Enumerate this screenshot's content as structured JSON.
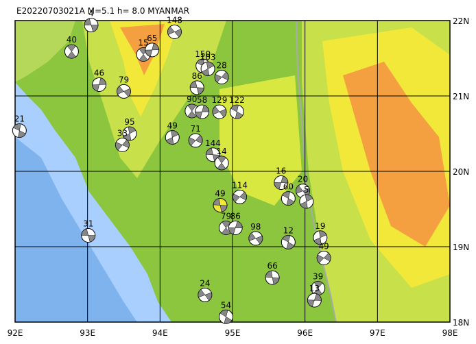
{
  "chart_data": {
    "type": "focal-map",
    "title": "E20220703021A M=5.1 h= 8.0 MYANMAR",
    "xlim": [
      92,
      98
    ],
    "ylim": [
      18,
      22
    ],
    "xticks": [
      {
        "value": 92,
        "label": "92E"
      },
      {
        "value": 93,
        "label": "93E"
      },
      {
        "value": 94,
        "label": "94E"
      },
      {
        "value": 95,
        "label": "95E"
      },
      {
        "value": 96,
        "label": "96E"
      },
      {
        "value": 97,
        "label": "97E"
      },
      {
        "value": 98,
        "label": "98E"
      }
    ],
    "yticks": [
      {
        "value": 18,
        "label": "18N"
      },
      {
        "value": 19,
        "label": "19N"
      },
      {
        "value": 20,
        "label": "20N"
      },
      {
        "value": 21,
        "label": "21N"
      },
      {
        "value": 22,
        "label": "22N"
      }
    ],
    "grid": true,
    "events": [
      {
        "label": "4",
        "lon": 93.05,
        "lat": 21.94
      },
      {
        "label": "40",
        "lon": 92.78,
        "lat": 21.59
      },
      {
        "label": "46",
        "lon": 93.16,
        "lat": 21.15
      },
      {
        "label": "79",
        "lon": 93.5,
        "lat": 21.06
      },
      {
        "label": "21",
        "lon": 92.06,
        "lat": 20.54
      },
      {
        "label": "95",
        "lon": 93.58,
        "lat": 20.5
      },
      {
        "label": "33",
        "lon": 93.48,
        "lat": 20.35
      },
      {
        "label": "31",
        "lon": 93.01,
        "lat": 19.15
      },
      {
        "label": "15",
        "lon": 93.77,
        "lat": 21.55
      },
      {
        "label": "65",
        "lon": 93.89,
        "lat": 21.61
      },
      {
        "label": "148",
        "lon": 94.2,
        "lat": 21.85
      },
      {
        "label": "150",
        "lon": 94.59,
        "lat": 21.4
      },
      {
        "label": "103",
        "lon": 94.66,
        "lat": 21.36
      },
      {
        "label": "28",
        "lon": 94.85,
        "lat": 21.25
      },
      {
        "label": "86",
        "lon": 94.51,
        "lat": 21.11
      },
      {
        "label": "90",
        "lon": 94.44,
        "lat": 20.8
      },
      {
        "label": "58",
        "lon": 94.58,
        "lat": 20.79
      },
      {
        "label": "129",
        "lon": 94.82,
        "lat": 20.79
      },
      {
        "label": "122",
        "lon": 95.06,
        "lat": 20.79
      },
      {
        "label": "49",
        "lon": 94.17,
        "lat": 20.45
      },
      {
        "label": "71",
        "lon": 94.49,
        "lat": 20.41
      },
      {
        "label": "144",
        "lon": 94.73,
        "lat": 20.22
      },
      {
        "label": "14",
        "lon": 94.85,
        "lat": 20.11
      },
      {
        "label": "16",
        "lon": 95.67,
        "lat": 19.85
      },
      {
        "label": "20",
        "lon": 95.97,
        "lat": 19.74
      },
      {
        "label": "60",
        "lon": 95.77,
        "lat": 19.64
      },
      {
        "label": "5",
        "lon": 96.02,
        "lat": 19.6
      },
      {
        "label": "114",
        "lon": 95.1,
        "lat": 19.66
      },
      {
        "label": "49",
        "lon": 94.83,
        "lat": 19.55
      },
      {
        "label": "79",
        "lon": 94.91,
        "lat": 19.25
      },
      {
        "label": "86",
        "lon": 95.04,
        "lat": 19.25
      },
      {
        "label": "98",
        "lon": 95.32,
        "lat": 19.11
      },
      {
        "label": "12",
        "lon": 95.77,
        "lat": 19.06
      },
      {
        "label": "19",
        "lon": 96.21,
        "lat": 19.12
      },
      {
        "label": "49",
        "lon": 96.26,
        "lat": 18.85
      },
      {
        "label": "66",
        "lon": 95.55,
        "lat": 18.59
      },
      {
        "label": "39",
        "lon": 96.18,
        "lat": 18.45
      },
      {
        "label": "13",
        "lon": 96.13,
        "lat": 18.29
      },
      {
        "label": "24",
        "lon": 94.62,
        "lat": 18.36
      },
      {
        "label": "54",
        "lon": 94.91,
        "lat": 18.07
      }
    ]
  }
}
